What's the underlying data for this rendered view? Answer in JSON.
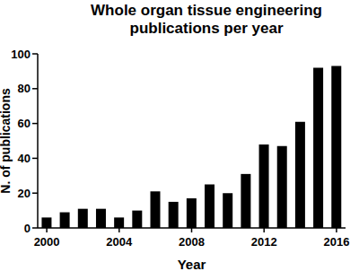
{
  "chart_data": {
    "type": "bar",
    "title": "Whole organ tissue engineering publications per year",
    "x_label": "Year",
    "y_label": "N. of publications",
    "categories": [
      "2000",
      null,
      null,
      null,
      "2004",
      null,
      null,
      null,
      "2008",
      null,
      null,
      null,
      "2012",
      null,
      null,
      null,
      "2016"
    ],
    "values": [
      6,
      9,
      11,
      11,
      6,
      10,
      21,
      15,
      17,
      25,
      20,
      31,
      48,
      47,
      61,
      92,
      93
    ],
    "color": "#000000",
    "ylim": [
      0,
      100
    ],
    "yticks": [
      0,
      20,
      40,
      60,
      80,
      100
    ],
    "grid": false
  }
}
